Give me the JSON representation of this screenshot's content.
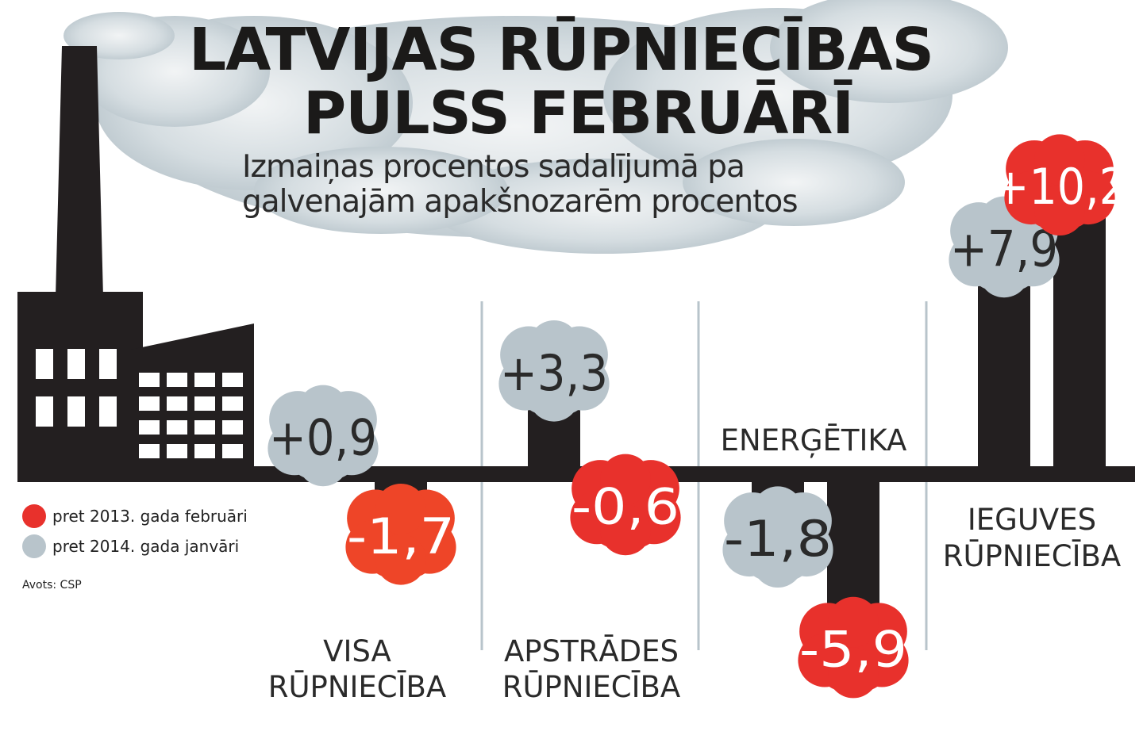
{
  "header": {
    "title_line1": "LATVIJAS RŪPNIECĪBAS",
    "title_line2": "PULSS FEBRUĀRĪ",
    "subtitle_line1": "Izmaiņas procentos sadalījumā pa",
    "subtitle_line2": "galvenajām apakšnozarēm procentos"
  },
  "legend": {
    "items": [
      {
        "label": "pret 2013. gada februāri",
        "color": "#e8312c"
      },
      {
        "label": "pret 2014. gada janvāri",
        "color": "#b8c4cb"
      }
    ]
  },
  "source": "Avots: CSP",
  "colors": {
    "dark": "#231f20",
    "red": "#e8312c",
    "red_alt": "#ee4528",
    "grey": "#b8c4cb",
    "separator": "#b8c4cb"
  },
  "chart_data": {
    "type": "bar",
    "title": "LATVIJAS RŪPNIECĪBAS PULSS FEBRUĀRĪ",
    "subtitle": "Izmaiņas procentos sadalījumā pa galvenajām apakšnozarēm procentos",
    "categories": [
      {
        "label_lines": [
          "VISA",
          "RŪPNIECĪBA"
        ]
      },
      {
        "label_lines": [
          "APSTRĀDES",
          "RŪPNIECĪBA"
        ]
      },
      {
        "label_lines": [
          "ENERĢĒTIKA"
        ]
      },
      {
        "label_lines": [
          "IEGUVES",
          "RŪPNIECĪBA"
        ]
      }
    ],
    "series": [
      {
        "name": "pret 2014. gada janvāri",
        "values": [
          0.9,
          3.3,
          -1.8,
          7.9
        ],
        "labels": [
          "+0,9",
          "+3,3",
          "-1,8",
          "+7,9"
        ]
      },
      {
        "name": "pret 2013. gada februāri",
        "values": [
          -1.7,
          -0.6,
          -5.9,
          10.2
        ],
        "labels": [
          "-1,7",
          "-0,6",
          "-5,9",
          "+10,2"
        ]
      }
    ]
  }
}
